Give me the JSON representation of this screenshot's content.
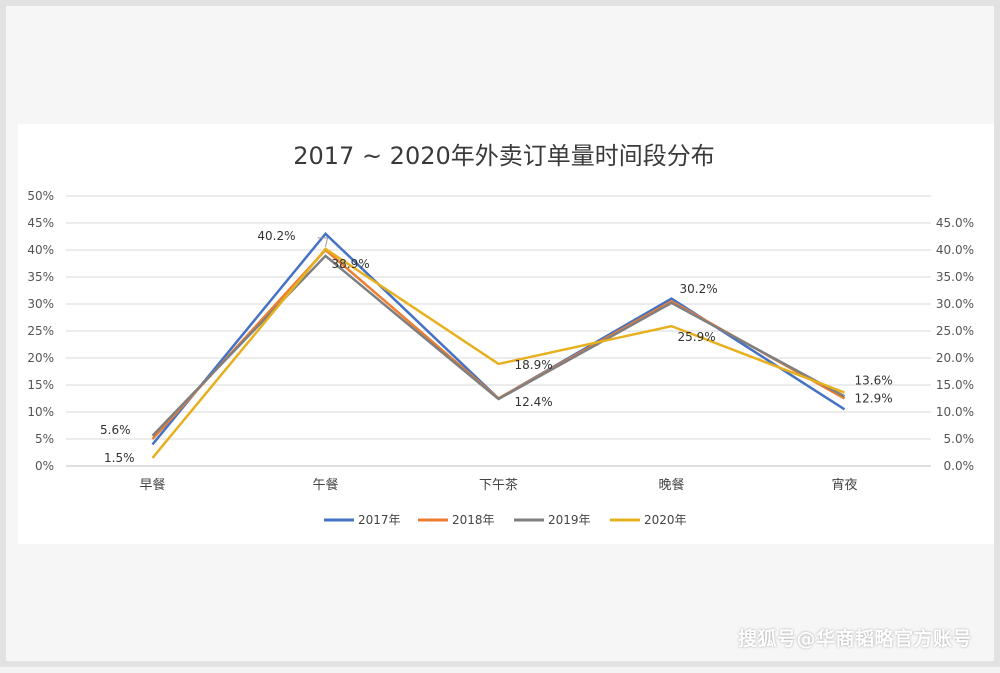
{
  "chart_data": {
    "type": "line",
    "title": "2017 ~ 2020年外卖订单量时间段分布",
    "categories": [
      "早餐",
      "午餐",
      "下午茶",
      "晚餐",
      "宵夜"
    ],
    "left_axis": {
      "ticks": [
        "0%",
        "5%",
        "10%",
        "15%",
        "20%",
        "25%",
        "30%",
        "35%",
        "40%",
        "45%",
        "50%"
      ],
      "ylim": [
        0,
        50
      ]
    },
    "right_axis": {
      "ticks": [
        "0.0%",
        "5.0%",
        "10.0%",
        "15.0%",
        "20.0%",
        "25.0%",
        "30.0%",
        "35.0%",
        "40.0%",
        "45.0%"
      ],
      "ylim": [
        0,
        45
      ]
    },
    "series": [
      {
        "name": "2017年",
        "color": "#4472c4",
        "axis": "left",
        "values": [
          4.0,
          43.0,
          12.5,
          31.0,
          10.5
        ]
      },
      {
        "name": "2018年",
        "color": "#ed7d31",
        "axis": "left",
        "values": [
          5.0,
          40.0,
          12.5,
          30.5,
          12.5
        ]
      },
      {
        "name": "2019年",
        "color": "#7f7f7f",
        "axis": "left",
        "values": [
          5.6,
          38.9,
          12.4,
          30.2,
          12.9
        ]
      },
      {
        "name": "2020年",
        "color": "#e6b01e",
        "axis": "right",
        "values": [
          1.5,
          40.2,
          18.9,
          25.9,
          13.6
        ]
      }
    ],
    "data_labels": [
      {
        "text": "5.6%",
        "series": 2,
        "index": 0
      },
      {
        "text": "1.5%",
        "series": 3,
        "index": 0
      },
      {
        "text": "40.2%",
        "series": 3,
        "index": 1
      },
      {
        "text": "38.9%",
        "series": 2,
        "index": 1
      },
      {
        "text": "18.9%",
        "series": 3,
        "index": 2
      },
      {
        "text": "12.4%",
        "series": 2,
        "index": 2
      },
      {
        "text": "30.2%",
        "series": 2,
        "index": 3
      },
      {
        "text": "25.9%",
        "series": 3,
        "index": 3
      },
      {
        "text": "13.6%",
        "series": 3,
        "index": 4
      },
      {
        "text": "12.9%",
        "series": 2,
        "index": 4
      }
    ],
    "grid": true,
    "legend": "bottom"
  },
  "watermark": "搜狐号@华商韬略官方账号"
}
